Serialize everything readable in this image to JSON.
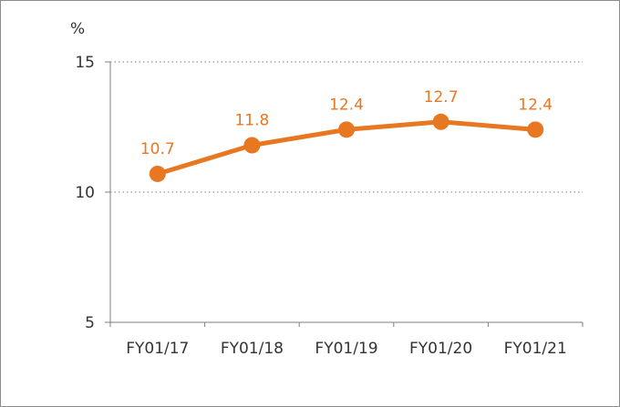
{
  "chart_data": {
    "type": "line",
    "unit": "%",
    "categories": [
      "FY01/17",
      "FY01/18",
      "FY01/19",
      "FY01/20",
      "FY01/21"
    ],
    "series": [
      {
        "values": [
          10.7,
          11.8,
          12.4,
          12.7,
          12.4
        ]
      }
    ],
    "data_labels": [
      "10.7",
      "11.8",
      "12.4",
      "12.7",
      "12.4"
    ],
    "ylim": [
      5,
      15
    ],
    "yticks": [
      5,
      10,
      15
    ],
    "ytick_labels": [
      "5",
      "10",
      "15"
    ],
    "grid": "horizontal dotted at 10 and 15",
    "legend": "none",
    "colors": {
      "series": "#e87722",
      "axis": "#7f7f7f",
      "grid": "#a6a6a6",
      "text": "#333333"
    }
  }
}
